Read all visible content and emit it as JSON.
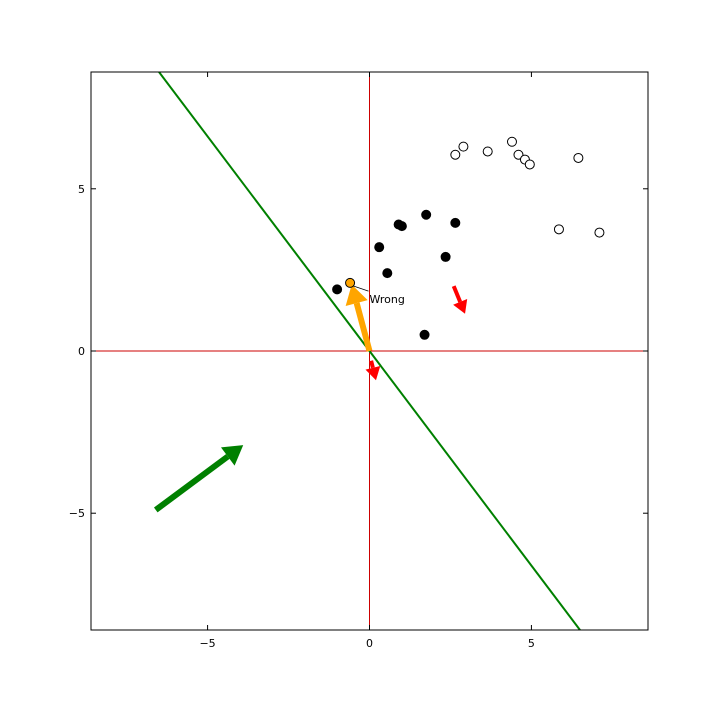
{
  "chart_data": {
    "type": "scatter",
    "title": "",
    "xlabel": "",
    "ylabel": "",
    "xlim": [
      -8.6,
      8.6
    ],
    "ylim": [
      -8.6,
      8.6
    ],
    "xticks": [
      -5,
      0,
      5
    ],
    "yticks": [
      -5,
      0,
      5
    ],
    "xtick_labels": [
      "−5",
      "0",
      "5"
    ],
    "ytick_labels": [
      "−5",
      "0",
      "5"
    ],
    "grid": false,
    "legend": "none",
    "colors": {
      "axes_lines": "#cc0000",
      "decision_line": "#008000",
      "green_arrow": "#008000",
      "orange_arrow": "#ffa500",
      "red_arrow": "#ff0000",
      "filled_points": "#000000",
      "open_points_fill": "#ffffff",
      "wrong_point": "#ffa500"
    },
    "reference_lines": [
      {
        "orientation": "vertical",
        "x": 0
      },
      {
        "orientation": "horizontal",
        "y": 0
      }
    ],
    "decision_line": {
      "p1": [
        -6.5,
        8.6
      ],
      "p2": [
        6.5,
        -8.6
      ]
    },
    "filled_points": [
      {
        "x": -1.0,
        "y": 1.9
      },
      {
        "x": 0.3,
        "y": 3.2
      },
      {
        "x": 0.55,
        "y": 2.4
      },
      {
        "x": 0.9,
        "y": 3.9
      },
      {
        "x": 1.0,
        "y": 3.85
      },
      {
        "x": 1.75,
        "y": 4.2
      },
      {
        "x": 2.35,
        "y": 2.9
      },
      {
        "x": 2.65,
        "y": 3.95
      },
      {
        "x": 1.7,
        "y": 0.5
      }
    ],
    "open_points": [
      {
        "x": 2.65,
        "y": 6.05
      },
      {
        "x": 2.9,
        "y": 6.3
      },
      {
        "x": 3.65,
        "y": 6.15
      },
      {
        "x": 4.4,
        "y": 6.45
      },
      {
        "x": 4.6,
        "y": 6.05
      },
      {
        "x": 4.8,
        "y": 5.9
      },
      {
        "x": 4.95,
        "y": 5.75
      },
      {
        "x": 6.45,
        "y": 5.95
      },
      {
        "x": 5.85,
        "y": 3.75
      },
      {
        "x": 7.1,
        "y": 3.65
      }
    ],
    "wrong_point": {
      "x": -0.6,
      "y": 2.1
    },
    "annotation": {
      "text": "Wrong",
      "x": 0.0,
      "y": 1.6,
      "target": [
        -0.6,
        2.1
      ]
    },
    "arrows": [
      {
        "name": "weight-arrow-green",
        "color": "green",
        "from": [
          -6.6,
          -4.9
        ],
        "to": [
          -3.9,
          -2.9
        ],
        "width": 6
      },
      {
        "name": "update-arrow-orange",
        "color": "orange",
        "from": [
          0.0,
          0.0
        ],
        "to": [
          -0.55,
          2.05
        ],
        "width": 6
      },
      {
        "name": "normal-arrow-red-origin",
        "color": "red",
        "from": [
          0.05,
          -0.3
        ],
        "to": [
          0.2,
          -0.9
        ],
        "width": 4
      },
      {
        "name": "normal-arrow-red-right",
        "color": "red",
        "from": [
          2.6,
          2.0
        ],
        "to": [
          2.95,
          1.15
        ],
        "width": 4
      }
    ]
  }
}
